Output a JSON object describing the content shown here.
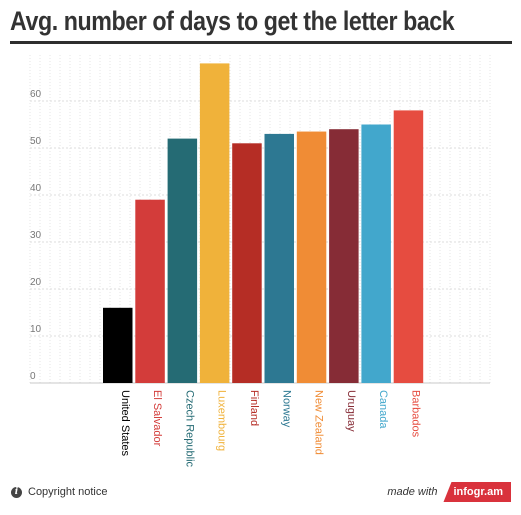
{
  "header": {
    "title": "Avg. number of days to get the letter back"
  },
  "footer": {
    "copyright": "Copyright notice",
    "info_glyph": "i",
    "made_with": "made with",
    "brand": "infogr.am"
  },
  "chart_data": {
    "type": "bar",
    "categories": [
      "United States",
      "El Salvador",
      "Czech Republic",
      "Luxembourg",
      "Finland",
      "Norway",
      "New Zealand",
      "Uruguay",
      "Canada",
      "Barbados"
    ],
    "values": [
      16,
      39,
      52,
      68,
      51,
      53,
      53.5,
      54,
      55,
      58
    ],
    "colors": [
      "#000000",
      "#d33c3a",
      "#256b74",
      "#f0b23a",
      "#b52d25",
      "#2d7892",
      "#f08c35",
      "#862c36",
      "#42a7cc",
      "#e64c40"
    ],
    "ytick_labels": [
      "0",
      "10",
      "20",
      "30",
      "40",
      "50",
      "60"
    ],
    "ylim": [
      0,
      70
    ],
    "grid": true,
    "legend": "none"
  }
}
